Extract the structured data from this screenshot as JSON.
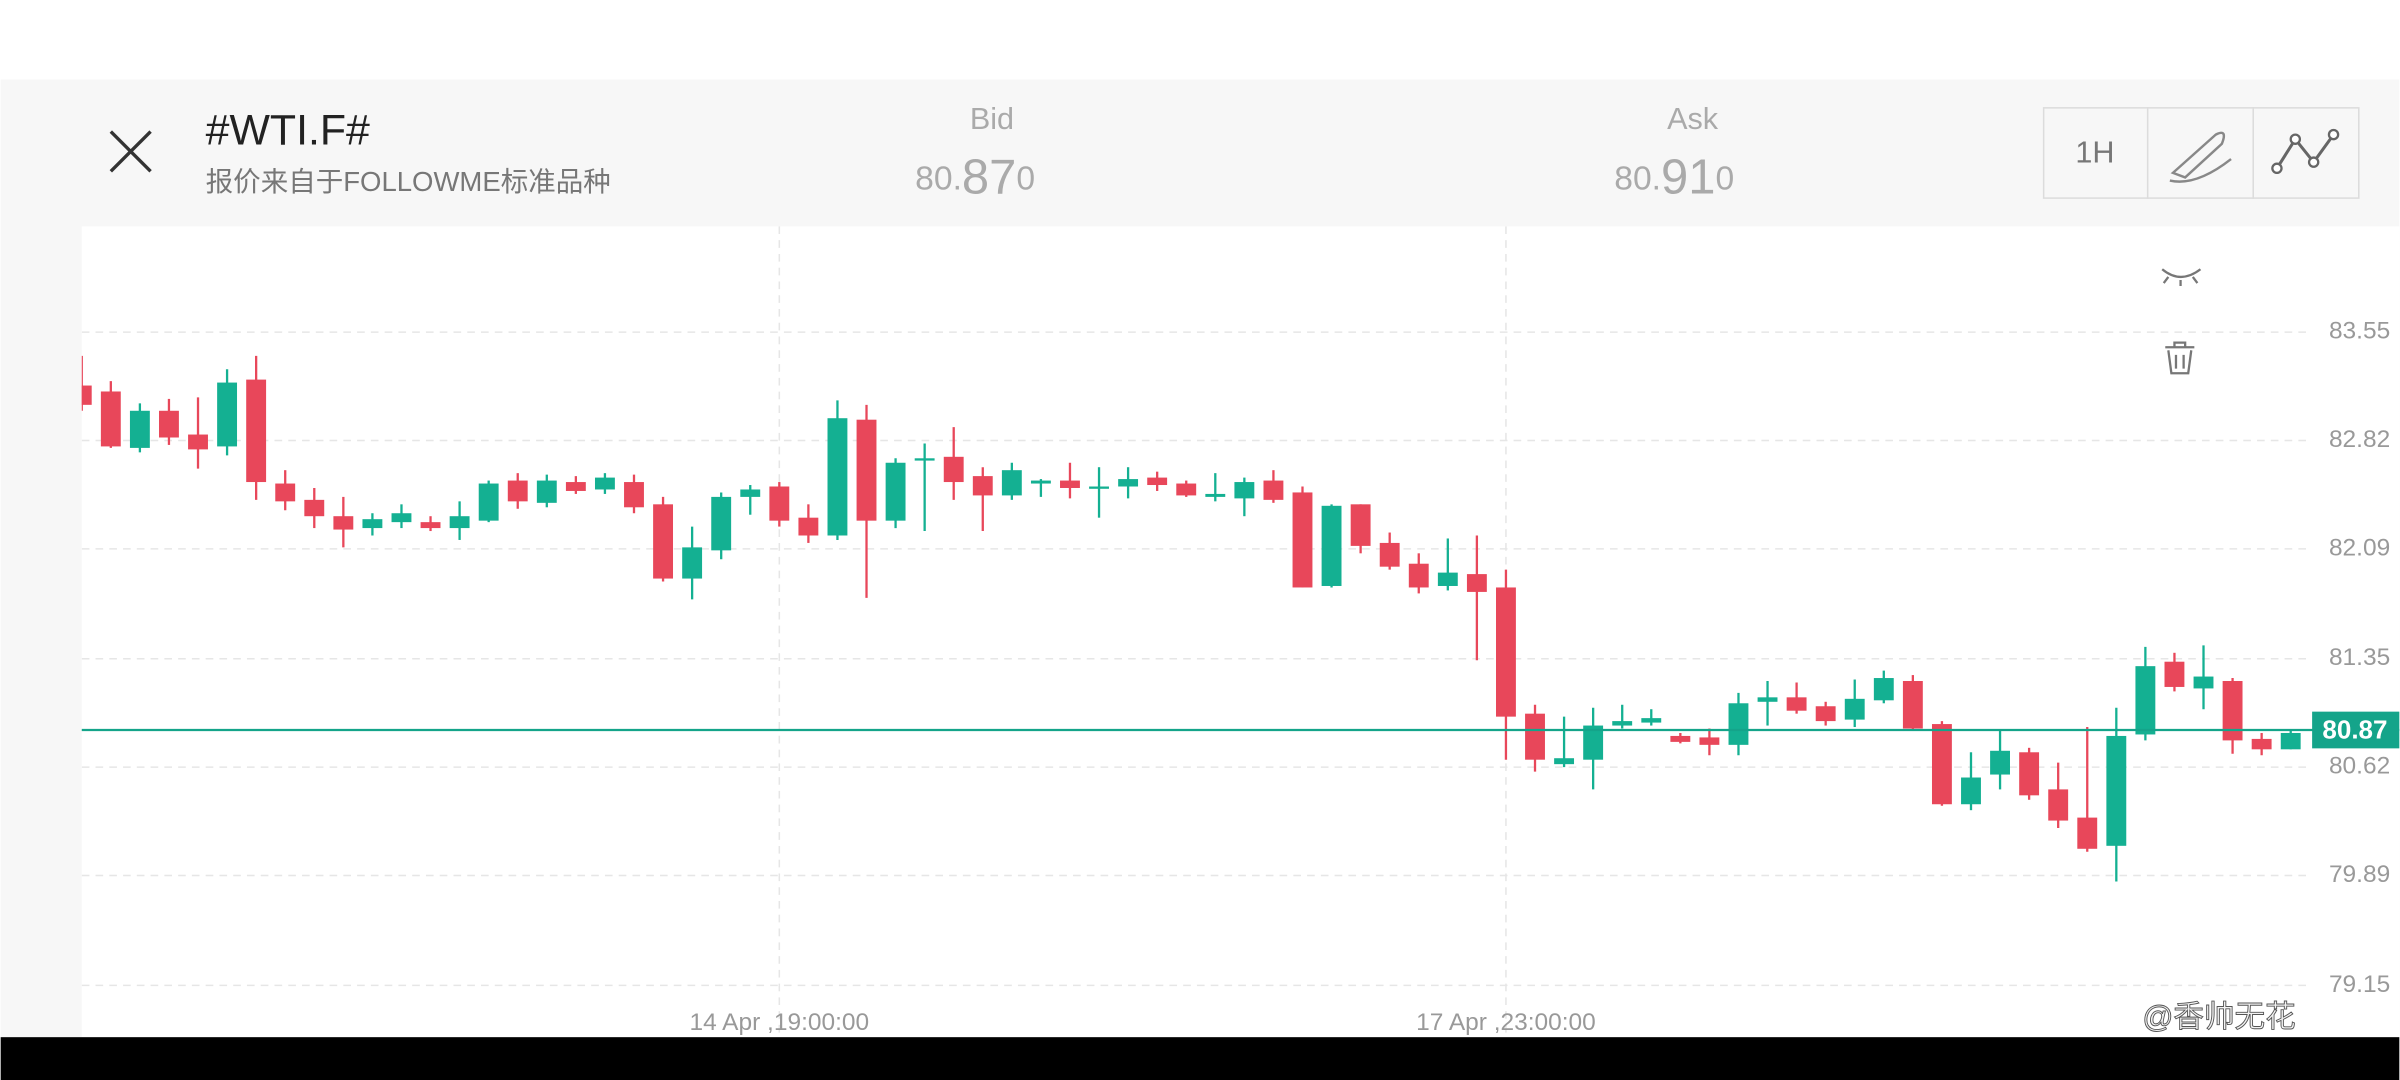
{
  "header": {
    "title": "#WTI.F#",
    "subtitle": "报价来自于FOLLOWME标准品种",
    "bid": {
      "label": "Bid",
      "price": "80.870"
    },
    "ask": {
      "label": "Ask",
      "price": "80.910"
    },
    "timeframe": "1H"
  },
  "watermark": "@香帅无花",
  "chart_data": {
    "type": "candlestick",
    "categories": [
      null,
      null,
      null,
      null,
      null,
      null,
      null,
      null,
      null,
      null,
      null,
      null,
      null,
      null,
      null,
      null,
      null,
      null,
      null,
      null,
      null,
      null,
      null,
      null,
      "14 Apr ,19:00:00",
      null,
      null,
      null,
      null,
      null,
      null,
      null,
      null,
      null,
      null,
      null,
      null,
      null,
      null,
      null,
      null,
      null,
      null,
      null,
      null,
      null,
      null,
      null,
      null,
      "17 Apr ,23:00:00",
      null,
      null,
      null,
      null,
      null,
      null,
      null,
      null,
      null,
      null,
      null,
      null,
      null,
      null,
      null,
      null,
      null,
      null,
      null,
      null,
      null,
      null,
      null,
      null,
      null,
      null,
      null
    ],
    "open": [
      83.19,
      83.15,
      82.77,
      83.02,
      82.86,
      82.78,
      83.23,
      82.53,
      82.42,
      82.31,
      82.23,
      82.27,
      82.27,
      82.23,
      82.28,
      82.55,
      82.4,
      82.54,
      82.49,
      82.54,
      82.39,
      81.89,
      82.08,
      82.44,
      82.51,
      82.3,
      82.18,
      82.96,
      82.28,
      82.69,
      82.71,
      82.58,
      82.45,
      82.53,
      82.55,
      82.5,
      82.51,
      82.57,
      82.53,
      82.44,
      82.43,
      82.55,
      82.47,
      81.84,
      82.39,
      82.13,
      81.99,
      81.84,
      81.92,
      81.83,
      80.98,
      80.64,
      80.67,
      80.9,
      80.92,
      80.83,
      80.82,
      80.77,
      81.06,
      81.09,
      81.03,
      80.94,
      81.07,
      81.2,
      80.91,
      80.37,
      80.57,
      80.72,
      80.47,
      80.28,
      80.09,
      80.84,
      81.33,
      81.15,
      81.2,
      80.81,
      80.74
    ],
    "high": [
      83.39,
      83.22,
      83.07,
      83.1,
      83.11,
      83.3,
      83.39,
      82.62,
      82.5,
      82.44,
      82.33,
      82.39,
      82.31,
      82.41,
      82.55,
      82.6,
      82.59,
      82.58,
      82.6,
      82.59,
      82.44,
      82.24,
      82.47,
      82.52,
      82.54,
      82.39,
      83.09,
      83.06,
      82.7,
      82.8,
      82.91,
      82.64,
      82.67,
      82.56,
      82.67,
      82.64,
      82.64,
      82.61,
      82.55,
      82.6,
      82.57,
      82.62,
      82.51,
      82.39,
      82.39,
      82.2,
      82.06,
      82.16,
      82.18,
      81.95,
      81.04,
      80.96,
      81.02,
      81.04,
      81.01,
      80.85,
      80.88,
      81.12,
      81.2,
      81.19,
      81.06,
      81.21,
      81.27,
      81.24,
      80.93,
      80.72,
      80.87,
      80.75,
      80.65,
      80.89,
      81.02,
      81.43,
      81.39,
      81.44,
      81.22,
      80.85,
      80.87
    ],
    "low": [
      83.02,
      82.77,
      82.74,
      82.79,
      82.63,
      82.72,
      82.42,
      82.35,
      82.23,
      82.1,
      82.18,
      82.23,
      82.21,
      82.15,
      82.27,
      82.36,
      82.37,
      82.46,
      82.46,
      82.33,
      81.87,
      81.75,
      82.02,
      82.32,
      82.24,
      82.13,
      82.15,
      81.76,
      82.23,
      82.21,
      82.42,
      82.21,
      82.42,
      82.44,
      82.43,
      82.3,
      82.43,
      82.48,
      82.44,
      82.41,
      82.31,
      82.4,
      81.83,
      81.83,
      82.06,
      81.95,
      81.79,
      81.81,
      81.34,
      80.67,
      80.59,
      80.62,
      80.47,
      80.88,
      80.9,
      80.78,
      80.7,
      80.7,
      80.9,
      80.98,
      80.9,
      80.89,
      81.05,
      80.87,
      80.36,
      80.33,
      80.47,
      80.4,
      80.21,
      80.05,
      79.85,
      80.8,
      81.13,
      81.01,
      80.71,
      80.7,
      80.74
    ],
    "close": [
      83.06,
      82.78,
      83.02,
      82.84,
      82.76,
      83.21,
      82.54,
      82.41,
      82.31,
      82.22,
      82.29,
      82.33,
      82.23,
      82.31,
      82.53,
      82.41,
      82.55,
      82.48,
      82.57,
      82.37,
      81.89,
      82.1,
      82.44,
      82.49,
      82.28,
      82.18,
      82.97,
      82.28,
      82.67,
      82.7,
      82.54,
      82.45,
      82.62,
      82.55,
      82.5,
      82.51,
      82.56,
      82.52,
      82.45,
      82.46,
      82.54,
      82.42,
      81.83,
      82.38,
      82.11,
      81.97,
      81.83,
      81.93,
      81.8,
      80.96,
      80.67,
      80.68,
      80.9,
      80.93,
      80.95,
      80.79,
      80.77,
      81.05,
      81.09,
      81.0,
      80.93,
      81.08,
      81.22,
      80.88,
      80.37,
      80.55,
      80.73,
      80.43,
      80.26,
      80.07,
      80.83,
      81.3,
      81.16,
      81.23,
      80.8,
      80.74,
      80.85
    ],
    "up_color": "#14b092",
    "down_color": "#e8475a",
    "ylim": [
      79.1,
      84.2
    ],
    "yticks": [
      83.55,
      82.82,
      82.09,
      81.35,
      80.62,
      79.89,
      79.15
    ],
    "grid": true,
    "current_price": 80.87,
    "current_price_color": "#14a48a"
  }
}
